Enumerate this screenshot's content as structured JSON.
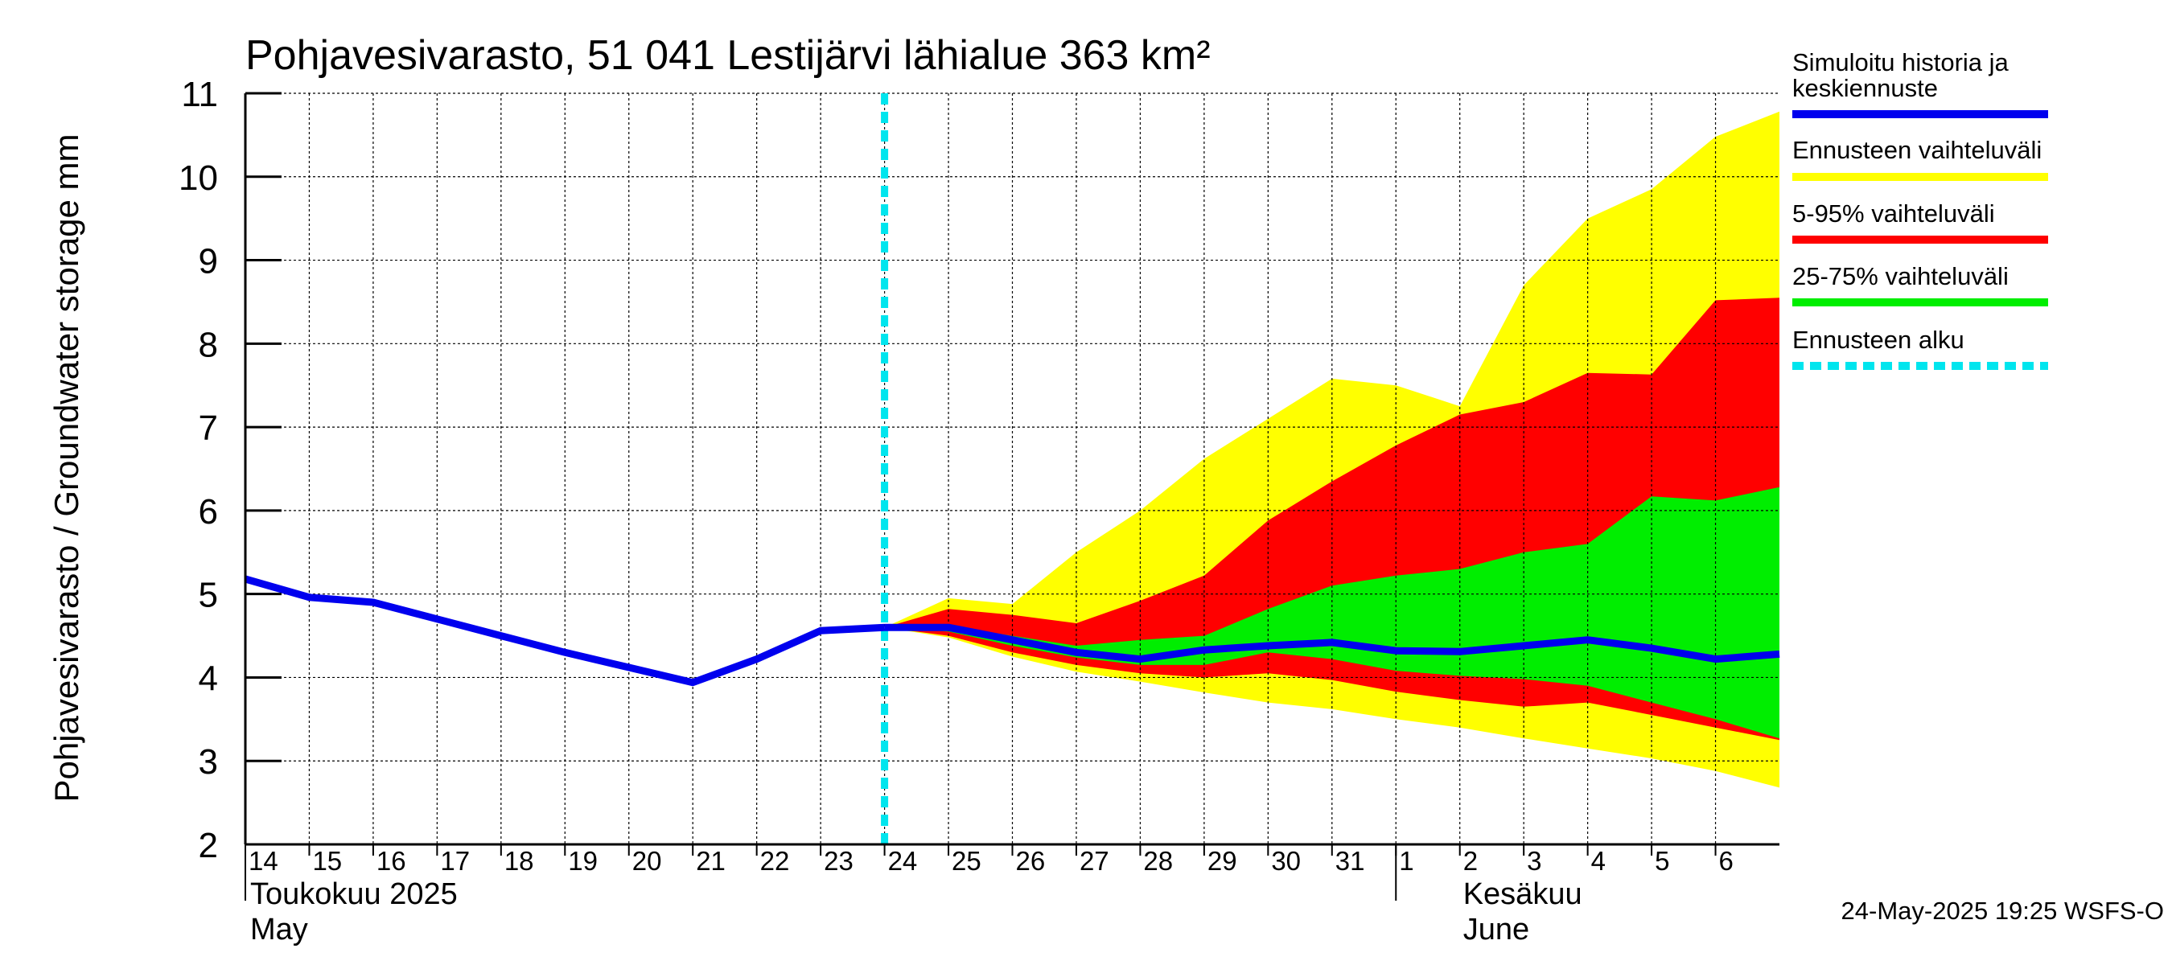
{
  "chart_data": {
    "type": "area",
    "title": "Pohjavesivarasto, 51 041 Lestijärvi lähialue 363 km²",
    "ylabel": "Pohjavesivarasto / Groundwater storage   mm",
    "ylim": [
      2,
      11
    ],
    "yticks": [
      "2",
      "3",
      "4",
      "5",
      "6",
      "7",
      "8",
      "9",
      "10",
      "11"
    ],
    "grid": true,
    "x_tick_labels": [
      "14",
      "15",
      "16",
      "17",
      "18",
      "19",
      "20",
      "21",
      "22",
      "23",
      "24",
      "25",
      "26",
      "27",
      "28",
      "29",
      "30",
      "31",
      "1",
      "2",
      "3",
      "4",
      "5",
      "6"
    ],
    "month_labels": [
      {
        "line1": "Toukokuu  2025",
        "line2": "May"
      },
      {
        "line1": "Kesäkuu",
        "line2": "June"
      }
    ],
    "forecast_start": "2025-05-24",
    "history": {
      "name": "Simuloitu historia ja keskiennuste",
      "color": "#0000ee",
      "x": [
        "2025-05-14",
        "2025-05-15",
        "2025-05-16",
        "2025-05-17",
        "2025-05-18",
        "2025-05-19",
        "2025-05-20",
        "2025-05-21",
        "2025-05-22",
        "2025-05-23",
        "2025-05-24"
      ],
      "y": [
        5.18,
        4.96,
        4.9,
        4.7,
        4.5,
        4.3,
        4.12,
        3.94,
        4.22,
        4.56,
        4.6
      ]
    },
    "forecast_x": [
      "2025-05-24",
      "2025-05-25",
      "2025-05-26",
      "2025-05-27",
      "2025-05-28",
      "2025-05-29",
      "2025-05-30",
      "2025-05-31",
      "2025-06-01",
      "2025-06-02",
      "2025-06-03",
      "2025-06-04",
      "2025-06-05",
      "2025-06-06",
      "2025-06-07"
    ],
    "median": [
      4.6,
      4.6,
      4.45,
      4.3,
      4.22,
      4.33,
      4.38,
      4.42,
      4.32,
      4.31,
      4.38,
      4.45,
      4.35,
      4.22,
      4.28
    ],
    "bands": [
      {
        "name": "Ennusteen vaihteluväli",
        "color": "#ffff00",
        "upper": [
          4.6,
          4.95,
          4.88,
          5.5,
          6.0,
          6.62,
          7.1,
          7.58,
          7.5,
          7.25,
          8.7,
          9.5,
          9.85,
          10.48,
          10.78
        ],
        "lower": [
          4.6,
          4.48,
          4.25,
          4.07,
          3.95,
          3.82,
          3.7,
          3.62,
          3.5,
          3.4,
          3.27,
          3.15,
          3.03,
          2.88,
          2.68
        ]
      },
      {
        "name": "5-95% vaihteluväli",
        "color": "#ff0000",
        "upper": [
          4.6,
          4.82,
          4.75,
          4.65,
          4.92,
          5.22,
          5.88,
          6.35,
          6.78,
          7.15,
          7.3,
          7.65,
          7.63,
          8.52,
          8.55
        ],
        "lower": [
          4.6,
          4.5,
          4.3,
          4.15,
          4.05,
          4.0,
          4.05,
          3.97,
          3.83,
          3.73,
          3.65,
          3.7,
          3.55,
          3.4,
          3.25
        ]
      },
      {
        "name": "25-75% vaihteluväli",
        "color": "#00ee00",
        "upper": [
          4.6,
          4.62,
          4.5,
          4.38,
          4.45,
          4.5,
          4.82,
          5.1,
          5.22,
          5.3,
          5.5,
          5.6,
          6.17,
          6.12,
          6.28
        ],
        "lower": [
          4.6,
          4.55,
          4.38,
          4.24,
          4.15,
          4.15,
          4.3,
          4.22,
          4.08,
          4.02,
          3.98,
          3.9,
          3.7,
          3.5,
          3.27
        ]
      }
    ],
    "legend": [
      {
        "label": "Simuloitu historia ja keskiennuste",
        "color": "#0000ee",
        "style": "solid"
      },
      {
        "label": "Ennusteen vaihteluväli",
        "color": "#ffff00",
        "style": "solid"
      },
      {
        "label": "5-95% vaihteluväli",
        "color": "#ff0000",
        "style": "solid"
      },
      {
        "label": "25-75% vaihteluväli",
        "color": "#00ee00",
        "style": "solid"
      },
      {
        "label": "Ennusteen alku",
        "color": "#00e5ee",
        "style": "dashed"
      }
    ],
    "legend_position": "right",
    "footer": "24-May-2025 19:25 WSFS-O"
  }
}
